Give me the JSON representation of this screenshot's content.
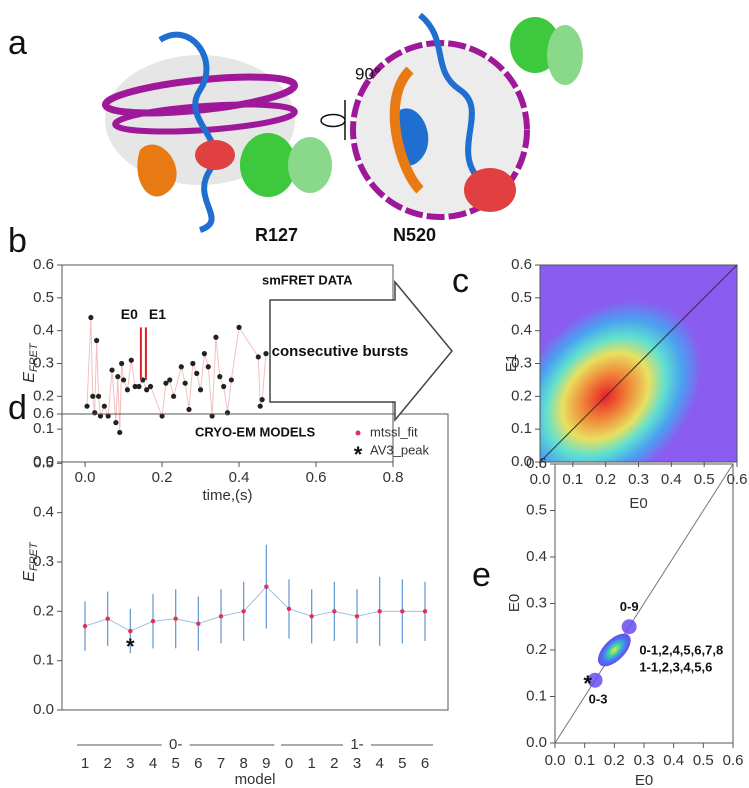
{
  "panel_labels": [
    "a",
    "b",
    "c",
    "d",
    "e"
  ],
  "structure_labels": {
    "rotation": "90°",
    "left": "R127",
    "right": "N520"
  },
  "chart_data": [
    {
      "type": "scatter",
      "title": "smFRET DATA",
      "x_label": "time,(s)",
      "y_label": "E",
      "y_label_sub": "FRET",
      "annotations": [
        "E0",
        "E1"
      ],
      "arrow_label": "consecutive bursts",
      "x": [
        0.005,
        0.015,
        0.02,
        0.025,
        0.03,
        0.035,
        0.04,
        0.05,
        0.06,
        0.07,
        0.08,
        0.085,
        0.09,
        0.095,
        0.1,
        0.11,
        0.12,
        0.13,
        0.14,
        0.15,
        0.16,
        0.17,
        0.2,
        0.21,
        0.22,
        0.23,
        0.25,
        0.26,
        0.27,
        0.28,
        0.29,
        0.3,
        0.31,
        0.32,
        0.33,
        0.34,
        0.35,
        0.36,
        0.37,
        0.38,
        0.4,
        0.45,
        0.455,
        0.46,
        0.47
      ],
      "values": [
        0.17,
        0.44,
        0.2,
        0.15,
        0.37,
        0.2,
        0.14,
        0.17,
        0.14,
        0.28,
        0.12,
        0.26,
        0.09,
        0.3,
        0.25,
        0.22,
        0.31,
        0.23,
        0.23,
        0.25,
        0.22,
        0.23,
        0.14,
        0.24,
        0.25,
        0.2,
        0.29,
        0.24,
        0.16,
        0.3,
        0.27,
        0.22,
        0.33,
        0.29,
        0.14,
        0.38,
        0.26,
        0.23,
        0.15,
        0.25,
        0.41,
        0.32,
        0.17,
        0.19,
        0.33
      ],
      "color": "#222222",
      "line_color": "#f2c0c0",
      "highlight_color": "#e02020",
      "highlight_x": [
        0.145,
        0.158
      ],
      "highlight_range": [
        0.25,
        0.41
      ],
      "xlim": [
        -0.06,
        0.8
      ],
      "xticks": [
        {
          "value": 0,
          "label": "0.0"
        },
        0.2,
        0.4,
        0.6,
        0.8
      ],
      "ylim": [
        0,
        0.6
      ],
      "yticks": [
        {
          "value": 0,
          "label": "0.0"
        },
        0.1,
        0.2,
        0.3,
        0.4,
        0.5,
        0.6
      ]
    },
    {
      "type": "density",
      "x_label": "E0",
      "y_label": "E1",
      "center": [
        0.2,
        0.2
      ],
      "diagonal": true,
      "xlim": [
        0,
        0.6
      ],
      "xticks": [
        {
          "value": 0,
          "label": "0.0"
        },
        0.1,
        0.2,
        0.3,
        0.4,
        0.5,
        0.6
      ],
      "ylim": [
        0,
        0.6
      ],
      "yticks": [
        {
          "value": 0,
          "label": "0.0"
        },
        0.1,
        0.2,
        0.3,
        0.4,
        0.5,
        0.6
      ]
    },
    {
      "type": "errorbar",
      "title": "CRYO-EM MODELS",
      "x_label": "model",
      "y_label": "E",
      "y_label_sub": "FRET",
      "categories": [
        "1",
        "2",
        "3",
        "4",
        "5",
        "6",
        "7",
        "8",
        "9",
        "0",
        "1",
        "2",
        "3",
        "4",
        "5",
        "6"
      ],
      "groups": [
        "0-",
        "1-"
      ],
      "series": [
        {
          "name": "mtssl_fit",
          "color": "#e0305a",
          "line_color": "#9cc0e4",
          "error_color": "#6a9fd4",
          "values": [
            0.17,
            0.185,
            0.16,
            0.18,
            0.185,
            0.175,
            0.19,
            0.2,
            0.25,
            0.205,
            0.19,
            0.2,
            0.19,
            0.2,
            0.2,
            0.2
          ],
          "errors": [
            0.05,
            0.055,
            0.045,
            0.055,
            0.06,
            0.055,
            0.055,
            0.06,
            0.085,
            0.06,
            0.055,
            0.06,
            0.055,
            0.07,
            0.065,
            0.06
          ]
        },
        {
          "name": "AV3_peak",
          "color": "#111111",
          "marker": "*",
          "values": [
            null,
            null,
            0.135,
            null,
            null,
            null,
            null,
            null,
            null,
            null,
            null,
            null,
            null,
            null,
            null,
            null
          ]
        }
      ],
      "ylim": [
        0,
        0.6
      ],
      "yticks": [
        {
          "value": 0,
          "label": "0.0"
        },
        0.1,
        0.2,
        0.3,
        0.4,
        0.5,
        0.6
      ]
    },
    {
      "type": "scatter",
      "x_label": "E0",
      "y_label": "E0",
      "diagonal": true,
      "x": [
        0.25,
        0.2,
        0.135
      ],
      "values": [
        0.25,
        0.2,
        0.135
      ],
      "color": "#6a4cf0",
      "annotations": [
        "0-9",
        "0-1,2,4,5,6,7,8",
        "1-1,2,3,4,5,6",
        "0-3"
      ],
      "star": {
        "marker": "*",
        "x": [
          0.11
        ],
        "values": [
          0.135
        ]
      },
      "xlim": [
        0,
        0.6
      ],
      "xticks": [
        {
          "value": 0,
          "label": "0.0"
        },
        0.1,
        0.2,
        0.3,
        0.4,
        0.5,
        0.6
      ],
      "ylim": [
        0,
        0.6
      ],
      "yticks": [
        {
          "value": 0,
          "label": "0.0"
        },
        0.1,
        0.2,
        0.3,
        0.4,
        0.5,
        0.6
      ]
    }
  ]
}
